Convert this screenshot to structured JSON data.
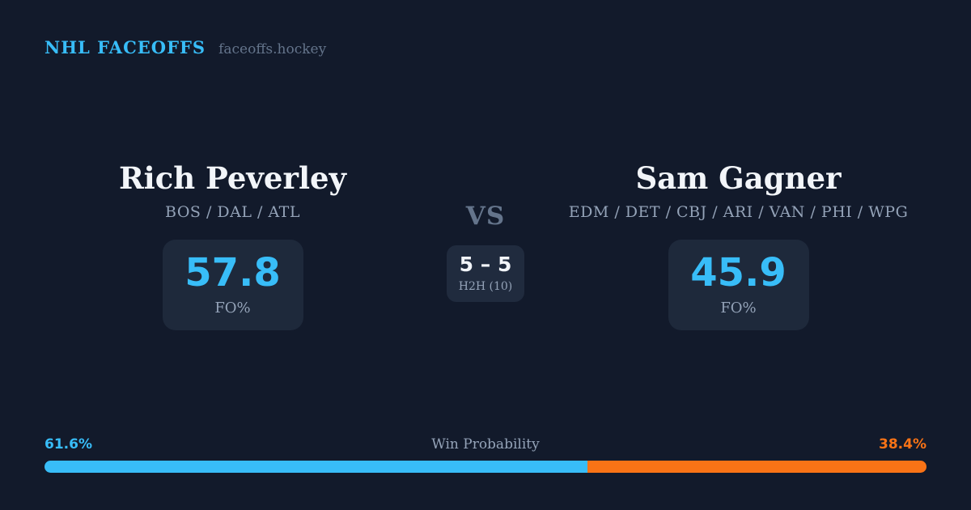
{
  "header": {
    "brand": "NHL FACEOFFS",
    "site": "faceoffs.hockey"
  },
  "players": [
    {
      "name": "Rich Peverley",
      "teams": "BOS / DAL / ATL",
      "fo_pct": "57.8",
      "fo_label": "FO%"
    },
    {
      "name": "Sam Gagner",
      "teams": "EDM / DET / CBJ / ARI / VAN / PHI / WPG",
      "fo_pct": "45.9",
      "fo_label": "FO%"
    }
  ],
  "matchup": {
    "vs_label": "VS",
    "h2h_score": "5 – 5",
    "h2h_label": "H2H (10)"
  },
  "win_probability": {
    "title": "Win Probability",
    "left_label": "61.6%",
    "right_label": "38.4%",
    "left_value": 61.6,
    "right_value": 38.4
  },
  "colors": {
    "background": "#121a2b",
    "panel": "#1e293b",
    "accent_blue": "#38bdf8",
    "accent_orange": "#f97316",
    "text_primary": "#f2f5f9",
    "text_muted": "#94a3b8",
    "text_dim": "#64748b"
  },
  "chart_data": {
    "type": "bar",
    "title": "Win Probability",
    "layout": "single horizontal stacked bar, rounded ends, no axes, labels above each end",
    "categories": [
      "Rich Peverley",
      "Sam Gagner"
    ],
    "values": [
      61.6,
      38.4
    ],
    "colors": [
      "#38bdf8",
      "#f97316"
    ],
    "annotations": [
      "61.6%",
      "38.4%"
    ],
    "related_stats": {
      "faceoff_pct": [
        57.8,
        45.9
      ],
      "head_to_head": "5 – 5",
      "head_to_head_sample": "H2H (10)"
    }
  }
}
